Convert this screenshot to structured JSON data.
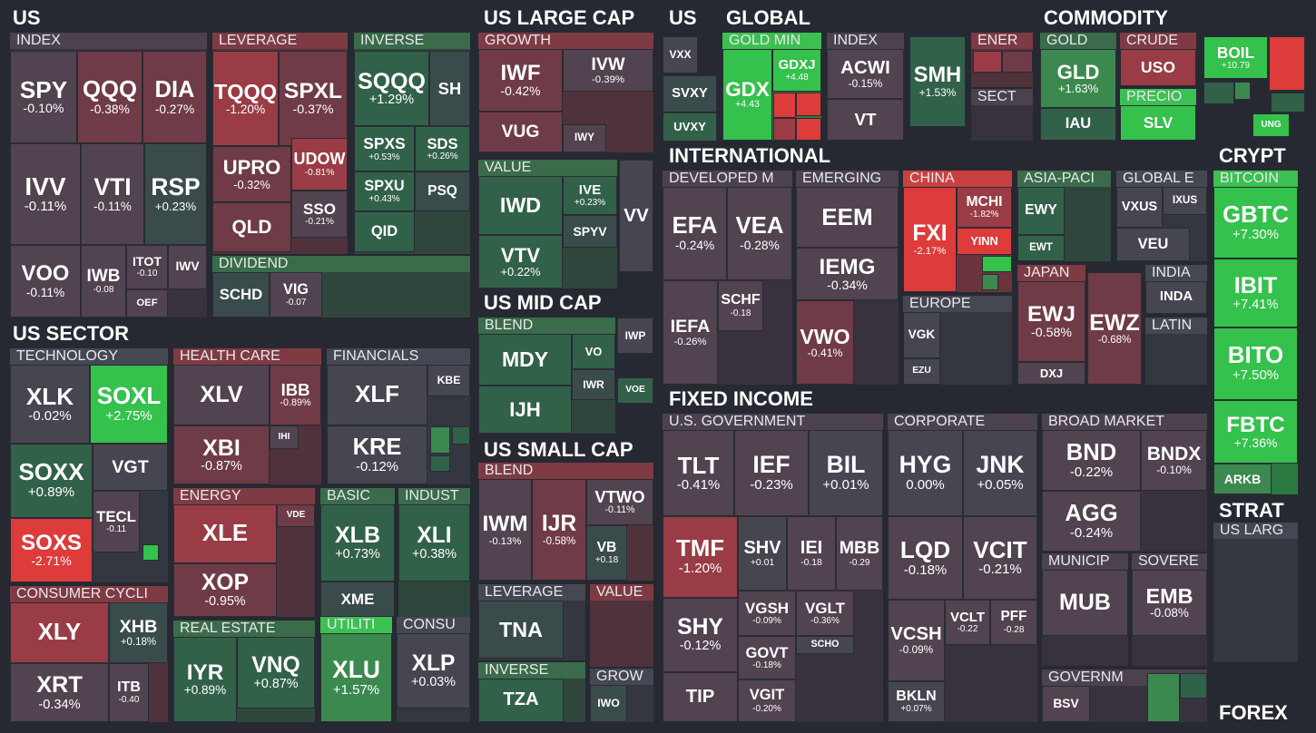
{
  "sections": [
    {
      "title": "US",
      "groups": [
        {
          "title": "INDEX",
          "tiles": [
            {
              "ticker": "SPY",
              "change": "-0.10%"
            },
            {
              "ticker": "QQQ",
              "change": "-0.38%"
            },
            {
              "ticker": "DIA",
              "change": "-0.27%"
            },
            {
              "ticker": "IVV",
              "change": "-0.11%"
            },
            {
              "ticker": "VTI",
              "change": "-0.11%"
            },
            {
              "ticker": "RSP",
              "change": "+0.23%"
            },
            {
              "ticker": "VOO",
              "change": "-0.11%"
            },
            {
              "ticker": "IWB",
              "change": "-0.08"
            },
            {
              "ticker": "ITOT",
              "change": "-0.10"
            },
            {
              "ticker": "IWV"
            },
            {
              "ticker": "OEF"
            }
          ]
        },
        {
          "title": "LEVERAGE",
          "tiles": [
            {
              "ticker": "TQQQ",
              "change": "-1.20%"
            },
            {
              "ticker": "SPXL",
              "change": "-0.37%"
            },
            {
              "ticker": "UPRO",
              "change": "-0.32%"
            },
            {
              "ticker": "UDOW",
              "change": "-0.81%"
            },
            {
              "ticker": "SSO",
              "change": "-0.21%"
            },
            {
              "ticker": "QLD"
            }
          ]
        },
        {
          "title": "INVERSE",
          "tiles": [
            {
              "ticker": "SQQQ",
              "change": "+1.29%"
            },
            {
              "ticker": "SH"
            },
            {
              "ticker": "SPXS",
              "change": "+0.53%"
            },
            {
              "ticker": "SDS",
              "change": "+0.26%"
            },
            {
              "ticker": "SPXU",
              "change": "+0.43%"
            },
            {
              "ticker": "PSQ"
            },
            {
              "ticker": "QID"
            }
          ]
        },
        {
          "title": "DIVIDEND",
          "tiles": [
            {
              "ticker": "SCHD"
            },
            {
              "ticker": "VIG",
              "change": "-0.07"
            }
          ]
        }
      ]
    },
    {
      "title": "US SECTOR",
      "groups": [
        {
          "title": "TECHNOLOGY",
          "tiles": [
            {
              "ticker": "XLK",
              "change": "-0.02%"
            },
            {
              "ticker": "SOXL",
              "change": "+2.75%"
            },
            {
              "ticker": "SOXX",
              "change": "+0.89%"
            },
            {
              "ticker": "VGT"
            },
            {
              "ticker": "TECL",
              "change": "-0.11"
            },
            {
              "ticker": "SOXS",
              "change": "-2.71%"
            }
          ]
        },
        {
          "title": "CONSUMER CYCLI",
          "tiles": [
            {
              "ticker": "XLY"
            },
            {
              "ticker": "XHB",
              "change": "+0.18%"
            },
            {
              "ticker": "XRT",
              "change": "-0.34%"
            },
            {
              "ticker": "ITB",
              "change": "-0.40"
            }
          ]
        },
        {
          "title": "HEALTH CARE",
          "tiles": [
            {
              "ticker": "XLV"
            },
            {
              "ticker": "IBB",
              "change": "-0.89%"
            },
            {
              "ticker": "XBI",
              "change": "-0.87%"
            },
            {
              "ticker": "IHI"
            }
          ]
        },
        {
          "title": "ENERGY",
          "tiles": [
            {
              "ticker": "XLE"
            },
            {
              "ticker": "VDE"
            },
            {
              "ticker": "XOP",
              "change": "-0.95%"
            }
          ]
        },
        {
          "title": "REAL ESTATE",
          "tiles": [
            {
              "ticker": "IYR",
              "change": "+0.89%"
            },
            {
              "ticker": "VNQ",
              "change": "+0.87%"
            }
          ]
        },
        {
          "title": "FINANCIALS",
          "tiles": [
            {
              "ticker": "XLF"
            },
            {
              "ticker": "KBE"
            },
            {
              "ticker": "KRE",
              "change": "-0.12%"
            }
          ]
        },
        {
          "title": "BASIC",
          "tiles": [
            {
              "ticker": "XLB",
              "change": "+0.73%"
            },
            {
              "ticker": "XME"
            }
          ]
        },
        {
          "title": "INDUST",
          "tiles": [
            {
              "ticker": "XLI",
              "change": "+0.38%"
            }
          ]
        },
        {
          "title": "UTILITI",
          "tiles": [
            {
              "ticker": "XLU",
              "change": "+1.57%"
            }
          ]
        },
        {
          "title": "CONSU",
          "tiles": [
            {
              "ticker": "XLP",
              "change": "+0.03%"
            }
          ]
        }
      ]
    },
    {
      "title": "US LARGE CAP",
      "groups": [
        {
          "title": "GROWTH",
          "tiles": [
            {
              "ticker": "IWF",
              "change": "-0.42%"
            },
            {
              "ticker": "IVW",
              "change": "-0.39%"
            },
            {
              "ticker": "VUG"
            },
            {
              "ticker": "IWY"
            }
          ]
        },
        {
          "title": "VALUE",
          "tiles": [
            {
              "ticker": "IWD"
            },
            {
              "ticker": "IVE",
              "change": "+0.23%"
            },
            {
              "ticker": "SPYV"
            },
            {
              "ticker": "VTV",
              "change": "+0.22%"
            }
          ]
        },
        {
          "tiles": [
            {
              "ticker": "VV"
            }
          ]
        }
      ]
    },
    {
      "title": "US MID CAP",
      "groups": [
        {
          "title": "BLEND",
          "tiles": [
            {
              "ticker": "MDY"
            },
            {
              "ticker": "VO"
            },
            {
              "ticker": "IWR"
            },
            {
              "ticker": "IJH"
            }
          ]
        },
        {
          "tiles": [
            {
              "ticker": "IWP"
            },
            {
              "ticker": "VOE"
            }
          ]
        }
      ]
    },
    {
      "title": "US SMALL CAP",
      "groups": [
        {
          "title": "BLEND",
          "tiles": [
            {
              "ticker": "IWM",
              "change": "-0.13%"
            },
            {
              "ticker": "IJR",
              "change": "-0.58%"
            },
            {
              "ticker": "VTWO",
              "change": "-0.11%"
            },
            {
              "ticker": "VB",
              "change": "+0.18"
            }
          ]
        },
        {
          "title": "LEVERAGE",
          "tiles": [
            {
              "ticker": "TNA"
            }
          ]
        },
        {
          "title": "VALUE",
          "tiles": []
        },
        {
          "title": "INVERSE",
          "tiles": [
            {
              "ticker": "TZA"
            }
          ]
        },
        {
          "title": "GROW",
          "tiles": [
            {
              "ticker": "IWO"
            }
          ]
        }
      ]
    },
    {
      "title": "US",
      "groups": [
        {
          "tiles": [
            {
              "ticker": "VXX"
            },
            {
              "ticker": "SVXY"
            },
            {
              "ticker": "UVXY"
            }
          ]
        }
      ]
    },
    {
      "title": "GLOBAL",
      "groups": [
        {
          "title": "GOLD MIN",
          "tiles": [
            {
              "ticker": "GDX",
              "change": "+4.43"
            },
            {
              "ticker": "GDXJ",
              "change": "+4.48"
            }
          ]
        },
        {
          "title": "INDEX",
          "tiles": [
            {
              "ticker": "ACWI",
              "change": "-0.15%"
            },
            {
              "ticker": "VT"
            }
          ]
        },
        {
          "tiles": [
            {
              "ticker": "SMH",
              "change": "+1.53%"
            }
          ]
        },
        {
          "title": "ENER",
          "tiles": []
        },
        {
          "title": "SECT",
          "tiles": []
        }
      ]
    },
    {
      "title": "COMMODITY",
      "groups": [
        {
          "title": "GOLD",
          "tiles": [
            {
              "ticker": "GLD",
              "change": "+1.63%"
            },
            {
              "ticker": "IAU"
            }
          ]
        },
        {
          "title": "CRUDE",
          "tiles": [
            {
              "ticker": "USO"
            }
          ]
        },
        {
          "title": "PRECIO",
          "tiles": [
            {
              "ticker": "SLV"
            }
          ]
        },
        {
          "tiles": [
            {
              "ticker": "BOIL",
              "change": "+10.79"
            },
            {
              "ticker": "UNG"
            }
          ]
        }
      ]
    },
    {
      "title": "INTERNATIONAL",
      "groups": [
        {
          "title": "DEVELOPED M",
          "tiles": [
            {
              "ticker": "EFA",
              "change": "-0.24%"
            },
            {
              "ticker": "VEA",
              "change": "-0.28%"
            },
            {
              "ticker": "IEFA",
              "change": "-0.26%"
            },
            {
              "ticker": "SCHF",
              "change": "-0.18"
            }
          ]
        },
        {
          "title": "EMERGING",
          "tiles": [
            {
              "ticker": "EEM"
            },
            {
              "ticker": "IEMG",
              "change": "-0.34%"
            },
            {
              "ticker": "VWO",
              "change": "-0.41%"
            }
          ]
        },
        {
          "title": "CHINA",
          "tiles": [
            {
              "ticker": "FXI",
              "change": "-2.17%"
            },
            {
              "ticker": "MCHI",
              "change": "-1.82%"
            },
            {
              "ticker": "YINN"
            }
          ]
        },
        {
          "title": "EUROPE",
          "tiles": [
            {
              "ticker": "VGK"
            },
            {
              "ticker": "EZU"
            }
          ]
        },
        {
          "title": "ASIA-PACI",
          "tiles": [
            {
              "ticker": "EWY"
            },
            {
              "ticker": "EWT"
            }
          ]
        },
        {
          "title": "GLOBAL E",
          "tiles": [
            {
              "ticker": "VXUS"
            },
            {
              "ticker": "IXUS"
            },
            {
              "ticker": "VEU"
            }
          ]
        },
        {
          "title": "JAPAN",
          "tiles": [
            {
              "ticker": "EWJ",
              "change": "-0.58%"
            },
            {
              "ticker": "DXJ"
            }
          ]
        },
        {
          "tiles": [
            {
              "ticker": "EWZ",
              "change": "-0.68%"
            }
          ]
        },
        {
          "title": "INDIA",
          "tiles": [
            {
              "ticker": "INDA"
            }
          ]
        },
        {
          "title": "LATIN",
          "tiles": []
        }
      ]
    },
    {
      "title": "FIXED INCOME",
      "groups": [
        {
          "title": "U.S. GOVERNMENT",
          "tiles": [
            {
              "ticker": "TLT",
              "change": "-0.41%"
            },
            {
              "ticker": "IEF",
              "change": "-0.23%"
            },
            {
              "ticker": "BIL",
              "change": "+0.01%"
            },
            {
              "ticker": "TMF",
              "change": "-1.20%"
            },
            {
              "ticker": "SHV",
              "change": "+0.01"
            },
            {
              "ticker": "IEI",
              "change": "-0.18"
            },
            {
              "ticker": "MBB",
              "change": "-0.29"
            },
            {
              "ticker": "SHY",
              "change": "-0.12%"
            },
            {
              "ticker": "TIP"
            },
            {
              "ticker": "VGSH",
              "change": "-0.09%"
            },
            {
              "ticker": "VGLT",
              "change": "-0.36%"
            },
            {
              "ticker": "GOVT",
              "change": "-0.18%"
            },
            {
              "ticker": "SCHO"
            },
            {
              "ticker": "VGIT",
              "change": "-0.20%"
            }
          ]
        },
        {
          "title": "CORPORATE",
          "tiles": [
            {
              "ticker": "HYG",
              "change": "0.00%"
            },
            {
              "ticker": "JNK",
              "change": "+0.05%"
            },
            {
              "ticker": "LQD",
              "change": "-0.18%"
            },
            {
              "ticker": "VCIT",
              "change": "-0.21%"
            },
            {
              "ticker": "VCSH",
              "change": "-0.09%"
            },
            {
              "ticker": "VCLT",
              "change": "-0.22"
            },
            {
              "ticker": "PFF",
              "change": "-0.28"
            },
            {
              "ticker": "BKLN",
              "change": "+0.07%"
            }
          ]
        },
        {
          "title": "BROAD MARKET",
          "tiles": [
            {
              "ticker": "BND",
              "change": "-0.22%"
            },
            {
              "ticker": "BNDX",
              "change": "-0.10%"
            },
            {
              "ticker": "AGG",
              "change": "-0.24%"
            }
          ]
        },
        {
          "title": "MUNICIP",
          "tiles": [
            {
              "ticker": "MUB"
            }
          ]
        },
        {
          "title": "SOVERE",
          "tiles": [
            {
              "ticker": "EMB",
              "change": "-0.08%"
            }
          ]
        },
        {
          "title": "GOVERNM",
          "tiles": [
            {
              "ticker": "BSV"
            }
          ]
        }
      ]
    },
    {
      "title": "CRYPT",
      "groups": [
        {
          "title": "BITCOIN",
          "tiles": [
            {
              "ticker": "GBTC",
              "change": "+7.30%"
            },
            {
              "ticker": "IBIT",
              "change": "+7.41%"
            },
            {
              "ticker": "BITO",
              "change": "+7.50%"
            },
            {
              "ticker": "FBTC",
              "change": "+7.36%"
            },
            {
              "ticker": "ARKB"
            }
          ]
        }
      ]
    },
    {
      "title": "STRAT",
      "groups": [
        {
          "title": "US LARG",
          "tiles": []
        }
      ]
    },
    {
      "title": "FOREX",
      "groups": []
    }
  ]
}
